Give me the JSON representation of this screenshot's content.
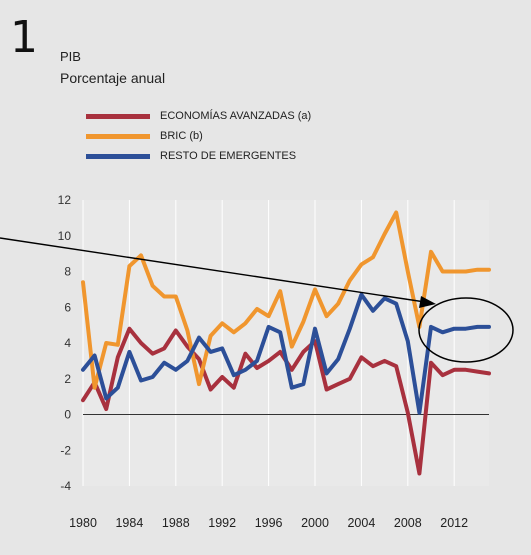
{
  "figure": {
    "number": "1"
  },
  "chart_data": {
    "type": "line",
    "title": "PIB",
    "subtitle": "Porcentaje anual",
    "xlabel": "",
    "ylabel": "",
    "x_ticks": [
      "1980",
      "1984",
      "1988",
      "1992",
      "1996",
      "2000",
      "2004",
      "2008",
      "2012"
    ],
    "y_ticks": [
      "12",
      "10",
      "8",
      "6",
      "4",
      "2",
      "0",
      "-2",
      "-4"
    ],
    "xlim": [
      1980,
      2015
    ],
    "ylim": [
      -4,
      12
    ],
    "grid": "vertical",
    "legend_position": "top-left",
    "x": [
      1980,
      1981,
      1982,
      1983,
      1984,
      1985,
      1986,
      1987,
      1988,
      1989,
      1990,
      1991,
      1992,
      1993,
      1994,
      1995,
      1996,
      1997,
      1998,
      1999,
      2000,
      2001,
      2002,
      2003,
      2004,
      2005,
      2006,
      2007,
      2008,
      2009,
      2010,
      2011,
      2012,
      2013,
      2014,
      2015
    ],
    "series": [
      {
        "name": "ECONOMÍAS AVANZADAS (a)",
        "color": "#a8313e",
        "values": [
          0.8,
          1.8,
          0.3,
          3.2,
          4.8,
          4.0,
          3.4,
          3.7,
          4.7,
          3.8,
          3.1,
          1.4,
          2.1,
          1.5,
          3.4,
          2.6,
          3.0,
          3.5,
          2.5,
          3.5,
          4.1,
          1.4,
          1.7,
          2.0,
          3.2,
          2.7,
          3.0,
          2.7,
          0.1,
          -3.3,
          2.9,
          2.2,
          2.5,
          2.5,
          2.4,
          2.3
        ]
      },
      {
        "name": "BRIC (b)",
        "color": "#f0962e",
        "values": [
          7.4,
          1.5,
          4.0,
          3.9,
          8.3,
          8.9,
          7.2,
          6.6,
          6.6,
          4.7,
          1.7,
          4.4,
          5.1,
          4.6,
          5.1,
          5.9,
          5.5,
          6.9,
          3.8,
          5.2,
          7.0,
          5.5,
          6.2,
          7.5,
          8.4,
          8.8,
          10.1,
          11.3,
          8.0,
          4.9,
          9.1,
          8.0,
          8.0,
          8.0,
          8.1,
          8.1
        ]
      },
      {
        "name": "RESTO DE EMERGENTES",
        "color": "#2c4f98",
        "values": [
          2.5,
          3.3,
          0.9,
          1.5,
          3.5,
          1.9,
          2.1,
          2.9,
          2.5,
          3.0,
          4.3,
          3.5,
          3.7,
          2.2,
          2.5,
          3.0,
          4.9,
          4.6,
          1.5,
          1.7,
          4.8,
          2.3,
          3.1,
          4.8,
          6.7,
          5.8,
          6.5,
          6.2,
          4.1,
          0.1,
          4.9,
          4.6,
          4.8,
          4.8,
          4.9,
          4.9
        ]
      }
    ]
  }
}
